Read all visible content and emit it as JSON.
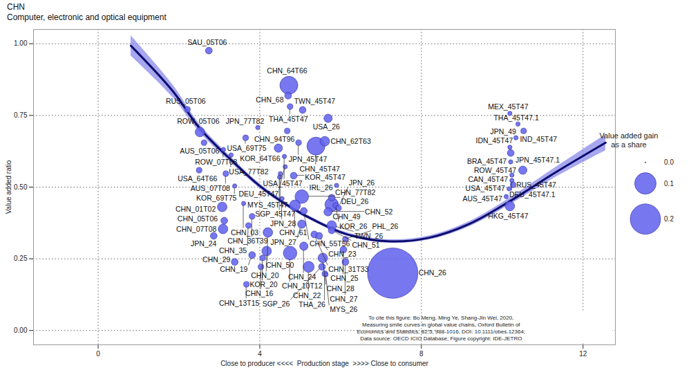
{
  "chart_data": {
    "type": "scatter",
    "title": "CHN",
    "subtitle": "Computer, electronic and optical equipment",
    "x_label": "Close to producer <<<<  Production stage  >>>> Close to consumer",
    "y_label": "Value added ratio",
    "xlim": [
      -1.6,
      12.8
    ],
    "xticks": [
      0,
      4,
      8,
      12
    ],
    "ylim": [
      -0.05,
      1.05
    ],
    "yticks": [
      {
        "value": 0,
        "label": "0.00"
      },
      {
        "value": 0.25,
        "label": "0.25"
      },
      {
        "value": 0.5,
        "label": "0.50"
      },
      {
        "value": 0.75,
        "label": "0.75"
      },
      {
        "value": 1,
        "label": "1.00"
      }
    ],
    "grid": true,
    "color": "#6464ee",
    "legend": "right",
    "size_legend": {
      "title": [
        "Value added gain",
        "as a share"
      ],
      "values": [
        0,
        0.1,
        0.2
      ],
      "labels": [
        "0.0",
        "0.1",
        "0.2"
      ]
    },
    "points": [
      {
        "label": "SAU_05T06",
        "x": 2.74,
        "y": 0.976,
        "size": 0.01
      },
      {
        "label": "CHN_64T66",
        "x": 4.72,
        "y": 0.855,
        "size": 0.07
      },
      {
        "label": "CHN_68",
        "x": 4.7,
        "y": 0.819,
        "size": 0.01
      },
      {
        "label": "THA_45T47",
        "x": 4.75,
        "y": 0.781,
        "size": 0.007
      },
      {
        "label": "RUS_05T06",
        "x": 2.21,
        "y": 0.771,
        "size": 0.007
      },
      {
        "label": "TWN_45T47",
        "x": 5.06,
        "y": 0.769,
        "size": 0.01
      },
      {
        "label": "USA_26",
        "x": 5.69,
        "y": 0.74,
        "size": 0.015
      },
      {
        "label": "JPN_77T82",
        "x": 3.95,
        "y": 0.708,
        "size": 0.004
      },
      {
        "label": "CHN_94T96",
        "x": 4.68,
        "y": 0.696,
        "size": 0.007
      },
      {
        "label": "ROW_05T06",
        "x": 2.52,
        "y": 0.692,
        "size": 0.02
      },
      {
        "label": "USA_69T75",
        "x": 3.65,
        "y": 0.672,
        "size": 0.007
      },
      {
        "label": "JPN_45T47",
        "x": 4.96,
        "y": 0.655,
        "size": 0.007
      },
      {
        "label": "AUS_05T06",
        "x": 2.62,
        "y": 0.655,
        "size": 0.007
      },
      {
        "label": "CHN_62T63",
        "x": 5.61,
        "y": 0.66,
        "size": 0.02
      },
      {
        "label": "KOR_64T66",
        "x": 4.46,
        "y": 0.636,
        "size": 0.015
      },
      {
        "label": "ROW_07T08",
        "x": 3.1,
        "y": 0.631,
        "size": 0.004
      },
      {
        "label": "CHN_45T47",
        "x": 5.39,
        "y": 0.643,
        "size": 0.07
      },
      {
        "label": "USA_77T82",
        "x": 3.29,
        "y": 0.612,
        "size": 0.004
      },
      {
        "label": "USA_45T47",
        "x": 4.61,
        "y": 0.607,
        "size": 0.004
      },
      {
        "label": "DEU_45T47",
        "x": 4.63,
        "y": 0.571,
        "size": 0.004
      },
      {
        "label": "MYS_45T47",
        "x": 4.51,
        "y": 0.547,
        "size": 0.004
      },
      {
        "label": "USA_64T66",
        "x": 2.5,
        "y": 0.559,
        "size": 0.007
      },
      {
        "label": "AUS_07T08",
        "x": 3.16,
        "y": 0.547,
        "size": 0.007
      },
      {
        "label": "KOR_45T47",
        "x": 4.84,
        "y": 0.54,
        "size": 0.01
      },
      {
        "label": "SGP_45T47",
        "x": 4.49,
        "y": 0.535,
        "size": 0.004
      },
      {
        "label": "IRL_26",
        "x": 5.9,
        "y": 0.506,
        "size": 0.004
      },
      {
        "label": "KOR_69T75",
        "x": 3.38,
        "y": 0.504,
        "size": 0.004
      },
      {
        "label": "CHN_03",
        "x": 3.6,
        "y": 0.443,
        "size": 0.004
      },
      {
        "label": "JPN_28",
        "x": 4.55,
        "y": 0.46,
        "size": 0.004
      },
      {
        "label": "CHN_77T82",
        "x": 5.04,
        "y": 0.467,
        "size": 0.04
      },
      {
        "label": "DEU_26",
        "x": 5.78,
        "y": 0.463,
        "size": 0.01
      },
      {
        "label": "CHN_01T02",
        "x": 3.07,
        "y": 0.431,
        "size": 0.02
      },
      {
        "label": "CHN_61",
        "x": 4.87,
        "y": 0.436,
        "size": 0.026
      },
      {
        "label": "CHN_49",
        "x": 5.78,
        "y": 0.439,
        "size": 0.04
      },
      {
        "label": "KOR_26",
        "x": 5.88,
        "y": 0.436,
        "size": 0.007
      },
      {
        "label": "CHN_36T39",
        "x": 3.81,
        "y": 0.398,
        "size": 0.007
      },
      {
        "label": "CHN_55T56",
        "x": 5.09,
        "y": 0.417,
        "size": 0.01
      },
      {
        "label": "CHN_52",
        "x": 5.69,
        "y": 0.414,
        "size": 0.015
      },
      {
        "label": "JPN_26",
        "x": 5.95,
        "y": 0.427,
        "size": 0.007
      },
      {
        "label": "CHN_05T06",
        "x": 3.12,
        "y": 0.383,
        "size": 0.01
      },
      {
        "label": "CHN_35",
        "x": 3.72,
        "y": 0.366,
        "size": 0.007
      },
      {
        "label": "JPN_27",
        "x": 5.04,
        "y": 0.371,
        "size": 0.015
      },
      {
        "label": "TWN_26",
        "x": 5.78,
        "y": 0.366,
        "size": 0.02
      },
      {
        "label": "CHN_07T08",
        "x": 3.09,
        "y": 0.354,
        "size": 0.02
      },
      {
        "label": "CHN_31T33",
        "x": 5.35,
        "y": 0.335,
        "size": 0.01
      },
      {
        "label": "CHN_51",
        "x": 5.78,
        "y": 0.349,
        "size": 0.01
      },
      {
        "label": "JPN_24",
        "x": 2.86,
        "y": 0.33,
        "size": 0.01
      },
      {
        "label": "CHN_50",
        "x": 4.2,
        "y": 0.342,
        "size": 0.02
      },
      {
        "label": "CHN_23",
        "x": 5.47,
        "y": 0.33,
        "size": 0.01
      },
      {
        "label": "PHL_26",
        "x": 6.12,
        "y": 0.318,
        "size": 0.007
      },
      {
        "label": "CHN_20",
        "x": 4.17,
        "y": 0.277,
        "size": 0.02
      },
      {
        "label": "CHN_24",
        "x": 5.09,
        "y": 0.294,
        "size": 0.015
      },
      {
        "label": "CHN_25",
        "x": 6.07,
        "y": 0.282,
        "size": 0.01
      },
      {
        "label": "CHN_19",
        "x": 3.81,
        "y": 0.263,
        "size": 0.01
      },
      {
        "label": "KOR_20",
        "x": 4.07,
        "y": 0.253,
        "size": 0.007
      },
      {
        "label": "CHN_10T12",
        "x": 4.75,
        "y": 0.27,
        "size": 0.04
      },
      {
        "label": "CHN_28",
        "x": 5.56,
        "y": 0.253,
        "size": 0.02
      },
      {
        "label": "CHN_27",
        "x": 6.12,
        "y": 0.239,
        "size": 0.01
      },
      {
        "label": "CHN_29",
        "x": 3.38,
        "y": 0.239,
        "size": 0.01
      },
      {
        "label": "CHN_16",
        "x": 4.03,
        "y": 0.222,
        "size": 0.007
      },
      {
        "label": "CHN_22",
        "x": 5.21,
        "y": 0.222,
        "size": 0.026
      },
      {
        "label": "SGP_26",
        "x": 5.54,
        "y": 0.222,
        "size": 0.01
      },
      {
        "label": "THA_26",
        "x": 5.61,
        "y": 0.198,
        "size": 0.007
      },
      {
        "label": "MYS_26",
        "x": 5.64,
        "y": 0.195,
        "size": 0.004
      },
      {
        "label": "CHN_13T15",
        "x": 3.67,
        "y": 0.161,
        "size": 0.007
      },
      {
        "label": "CHN_26",
        "x": 7.29,
        "y": 0.2,
        "size": 0.55
      },
      {
        "label": "MEX_45T47",
        "x": 10.19,
        "y": 0.757,
        "size": 0.004
      },
      {
        "label": "THA_45T47.1",
        "x": 10.39,
        "y": 0.72,
        "size": 0.004
      },
      {
        "label": "IND_45T47",
        "x": 10.53,
        "y": 0.696,
        "size": 0.007
      },
      {
        "label": "JPN_49",
        "x": 10.34,
        "y": 0.672,
        "size": 0.004
      },
      {
        "label": "IDN_45T47",
        "x": 10.19,
        "y": 0.639,
        "size": 0.004
      },
      {
        "label": "BRA_45T47",
        "x": 10.21,
        "y": 0.619,
        "size": 0.01
      },
      {
        "label": "ROW_45T47",
        "x": 10.21,
        "y": 0.588,
        "size": 0.004
      },
      {
        "label": "JPN_45T47.1",
        "x": 10.51,
        "y": 0.559,
        "size": 0.015
      },
      {
        "label": "CAN_45T47",
        "x": 10.24,
        "y": 0.542,
        "size": 0.004
      },
      {
        "label": "DEU_45T47.1",
        "x": 10.24,
        "y": 0.523,
        "size": 0.004
      },
      {
        "label": "RUS_45T47",
        "x": 10.27,
        "y": 0.508,
        "size": 0.007
      },
      {
        "label": "USA_45T47",
        "x": 10.17,
        "y": 0.494,
        "size": 0.004
      },
      {
        "label": "AUS_45T47",
        "x": 10.1,
        "y": 0.467,
        "size": 0.004
      },
      {
        "label": "HKG_45T47",
        "x": 10.19,
        "y": 0.434,
        "size": 0.02
      }
    ],
    "fit": {
      "color": "#0c0c70",
      "band_color": "#8a8aea",
      "x": [
        0.81,
        1.84,
        2.52,
        3.38,
        4.0,
        4.75,
        5.44,
        6.12,
        7.15,
        8.18,
        9.21,
        10.24,
        11.27,
        12.56
      ],
      "y": [
        0.993,
        0.836,
        0.704,
        0.583,
        0.504,
        0.431,
        0.378,
        0.337,
        0.311,
        0.323,
        0.373,
        0.455,
        0.547,
        0.655
      ],
      "lower": [
        0.958,
        0.814,
        0.69,
        0.573,
        0.496,
        0.424,
        0.372,
        0.331,
        0.305,
        0.316,
        0.364,
        0.443,
        0.53,
        0.627
      ],
      "upper": [
        1.028,
        0.858,
        0.718,
        0.593,
        0.512,
        0.438,
        0.384,
        0.343,
        0.317,
        0.33,
        0.382,
        0.467,
        0.564,
        0.683
      ]
    },
    "caption": [
      "To cite this figure: Bo Meng, Ming Ye, Shang-Jin Wei, 2020,",
      "Measuring smile curves in global value chains, Oxford Bulletin of",
      "Economics and Statistics, 82:5, 988-1016, DOI: 10.1111/obes.12364;",
      "Data source: OECD ICIO Database; Figure copyright: IDE-JETRO"
    ]
  }
}
